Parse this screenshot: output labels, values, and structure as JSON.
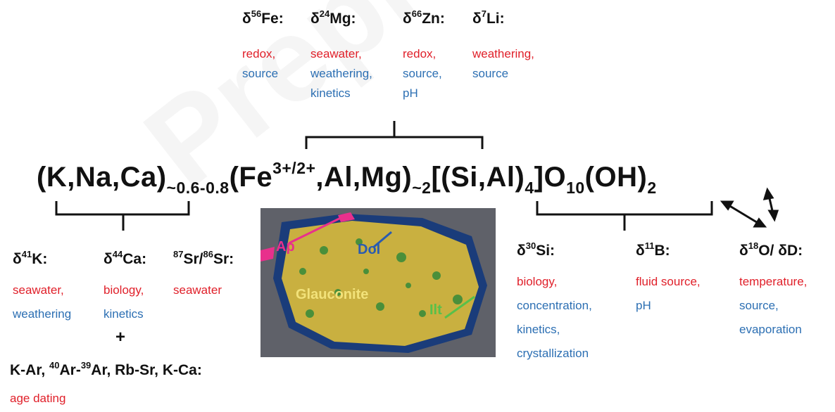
{
  "watermark": "Preprint",
  "top_isotopes": [
    {
      "label": "δ56Fe:",
      "base": "δ",
      "sup": "56",
      "el": "Fe:",
      "red": [
        "redox,"
      ],
      "blue": [
        "source"
      ]
    },
    {
      "label": "δ24Mg:",
      "base": "δ",
      "sup": "24",
      "el": "Mg:",
      "red": [
        "seawater,"
      ],
      "blue": [
        "weathering,",
        "kinetics"
      ]
    },
    {
      "label": "δ66Zn:",
      "base": "δ",
      "sup": "66",
      "el": "Zn:",
      "red": [
        "redox,"
      ],
      "blue": [
        "source,",
        "pH"
      ]
    },
    {
      "label": "δ7Li:",
      "base": "δ",
      "sup": "7",
      "el": "Li:",
      "red": [
        "weathering,"
      ],
      "blue": [
        "source"
      ]
    }
  ],
  "formula": {
    "p1": "(K,Na,Ca)",
    "s1": "~0.6-0.8",
    "p2": "(Fe",
    "sup2": "3+/2+",
    "p3": ",Al,Mg)",
    "s3": "~2",
    "p4": "[(Si,Al)",
    "s4": "4",
    "p5": "]O",
    "s5": "10",
    "p6": "(OH)",
    "s6": "2"
  },
  "bottom_left": [
    {
      "base": "δ",
      "sup": "41",
      "el": "K:",
      "red": [
        "seawater,"
      ],
      "blue": [
        "weathering"
      ]
    },
    {
      "base": "δ",
      "sup": "44",
      "el": "Ca:",
      "red": [
        "biology,"
      ],
      "blue": [
        "kinetics"
      ]
    },
    {
      "sup": "87",
      "el": "Sr/",
      "sup2": "86",
      "el2": "Sr:",
      "red": [
        "seawater"
      ],
      "blue": []
    }
  ],
  "plus": "+",
  "dating": {
    "a": "K-Ar, ",
    "sup1": "40",
    "b": "Ar-",
    "sup2": "39",
    "c": "Ar, Rb-Sr, K-Ca:",
    "red": "age dating"
  },
  "bottom_right": [
    {
      "base": "δ",
      "sup": "30",
      "el": "Si:",
      "red": [
        "biology,"
      ],
      "blue": [
        "concentration,",
        "kinetics,",
        "crystallization"
      ]
    },
    {
      "base": "δ",
      "sup": "11",
      "el": "B:",
      "red": [
        "fluid source,"
      ],
      "blue": [
        "pH"
      ]
    },
    {
      "base": "δ",
      "sup": "18",
      "el": "O/ δD:",
      "red": [
        "temperature,"
      ],
      "blue": [
        "source,",
        "evaporation"
      ]
    }
  ],
  "micro_labels": {
    "ap": "Ap",
    "dol": "Dol",
    "glauconite": "Glauconite",
    "ilt": "Ilt"
  },
  "colors": {
    "red": "#e0202a",
    "blue": "#2c6fb3",
    "glauconite": "#c9b040"
  }
}
